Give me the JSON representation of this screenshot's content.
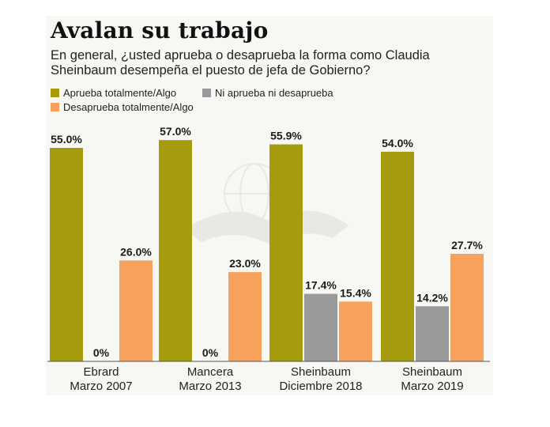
{
  "title": "Avalan su trabajo",
  "subtitle": "En general, ¿usted aprueba o desaprueba la forma como Claudia Sheinbaum desempeña el puesto  de jefa de Gobierno?",
  "colors": {
    "aprueba": "#a59b0c",
    "ni": "#9a9a9a",
    "desaprueba": "#f6a25c",
    "background": "#f7f7f4"
  },
  "chart_data": {
    "type": "bar",
    "title": "Avalan su trabajo",
    "categories": [
      [
        "Ebrard",
        "Marzo 2007"
      ],
      [
        "Mancera",
        "Marzo 2013"
      ],
      [
        "Sheinbaum",
        "Diciembre 2018"
      ],
      [
        "Sheinbaum",
        "Marzo 2019"
      ]
    ],
    "series": [
      {
        "name": "Aprueba totalmente/Algo",
        "color": "#a59b0c",
        "values": [
          55.0,
          57.0,
          55.9,
          54.0
        ],
        "labels": [
          "55.0%",
          "57.0%",
          "55.9%",
          "54.0%"
        ]
      },
      {
        "name": "Ni aprueba ni desaprueba",
        "color": "#9a9a9a",
        "values": [
          0,
          0,
          17.4,
          14.2
        ],
        "labels": [
          "0%",
          "0%",
          "17.4%",
          "14.2%"
        ]
      },
      {
        "name": "Desaprueba totalmente/Algo",
        "color": "#f6a25c",
        "values": [
          26.0,
          23.0,
          15.4,
          27.7
        ],
        "labels": [
          "26.0%",
          "23.0%",
          "15.4%",
          "27.7%"
        ]
      }
    ],
    "ylim": [
      0,
      60
    ],
    "grid": false,
    "legend_position": "top-left"
  }
}
